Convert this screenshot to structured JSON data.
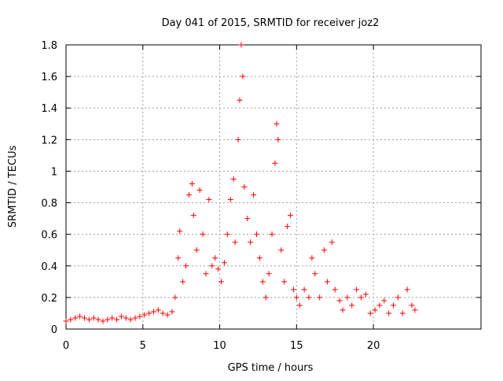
{
  "chart_data": {
    "type": "scatter",
    "title": "Day 041 of 2015, SRMTID for receiver joz2",
    "xlabel": "GPS time / hours",
    "ylabel": "SRMTID / TECUs",
    "xlim": [
      0,
      27
    ],
    "ylim": [
      0,
      1.8
    ],
    "xticks": [
      0,
      5,
      10,
      15,
      20
    ],
    "xtick_labels": [
      "0",
      "5",
      "10",
      "15",
      "20"
    ],
    "yticks": [
      0,
      0.2,
      0.4,
      0.6,
      0.8,
      1,
      1.2,
      1.4,
      1.6,
      1.8
    ],
    "ytick_labels": [
      "0",
      "0.2",
      "0.4",
      "0.6",
      "0.8",
      "1",
      "1.2",
      "1.4",
      "1.6",
      "1.8"
    ],
    "grid": true,
    "marker": "+",
    "color": "#ff0000",
    "series": [
      {
        "name": "SRMTID",
        "points": [
          [
            0.0,
            0.05
          ],
          [
            0.3,
            0.06
          ],
          [
            0.6,
            0.07
          ],
          [
            0.9,
            0.08
          ],
          [
            1.2,
            0.07
          ],
          [
            1.5,
            0.06
          ],
          [
            1.8,
            0.07
          ],
          [
            2.1,
            0.06
          ],
          [
            2.4,
            0.05
          ],
          [
            2.7,
            0.06
          ],
          [
            3.0,
            0.07
          ],
          [
            3.3,
            0.06
          ],
          [
            3.6,
            0.08
          ],
          [
            3.9,
            0.07
          ],
          [
            4.2,
            0.06
          ],
          [
            4.5,
            0.07
          ],
          [
            4.8,
            0.08
          ],
          [
            5.1,
            0.09
          ],
          [
            5.4,
            0.1
          ],
          [
            5.7,
            0.11
          ],
          [
            6.0,
            0.12
          ],
          [
            6.3,
            0.1
          ],
          [
            6.6,
            0.09
          ],
          [
            6.9,
            0.11
          ],
          [
            7.1,
            0.2
          ],
          [
            7.3,
            0.45
          ],
          [
            7.4,
            0.62
          ],
          [
            7.6,
            0.3
          ],
          [
            7.8,
            0.4
          ],
          [
            8.0,
            0.85
          ],
          [
            8.2,
            0.92
          ],
          [
            8.3,
            0.72
          ],
          [
            8.5,
            0.5
          ],
          [
            8.7,
            0.88
          ],
          [
            8.9,
            0.6
          ],
          [
            9.1,
            0.35
          ],
          [
            9.3,
            0.82
          ],
          [
            9.5,
            0.4
          ],
          [
            9.7,
            0.45
          ],
          [
            9.9,
            0.38
          ],
          [
            10.1,
            0.3
          ],
          [
            10.3,
            0.42
          ],
          [
            10.5,
            0.6
          ],
          [
            10.7,
            0.82
          ],
          [
            10.9,
            0.95
          ],
          [
            11.0,
            0.55
          ],
          [
            11.2,
            1.2
          ],
          [
            11.3,
            1.45
          ],
          [
            11.4,
            1.8
          ],
          [
            11.5,
            1.6
          ],
          [
            11.6,
            0.9
          ],
          [
            11.8,
            0.7
          ],
          [
            12.0,
            0.55
          ],
          [
            12.2,
            0.85
          ],
          [
            12.4,
            0.6
          ],
          [
            12.6,
            0.45
          ],
          [
            12.8,
            0.3
          ],
          [
            13.0,
            0.2
          ],
          [
            13.2,
            0.35
          ],
          [
            13.4,
            0.6
          ],
          [
            13.6,
            1.05
          ],
          [
            13.7,
            1.3
          ],
          [
            13.8,
            1.2
          ],
          [
            14.0,
            0.5
          ],
          [
            14.2,
            0.3
          ],
          [
            14.4,
            0.65
          ],
          [
            14.6,
            0.72
          ],
          [
            14.8,
            0.25
          ],
          [
            15.0,
            0.2
          ],
          [
            15.2,
            0.15
          ],
          [
            15.5,
            0.25
          ],
          [
            15.8,
            0.2
          ],
          [
            16.0,
            0.45
          ],
          [
            16.2,
            0.35
          ],
          [
            16.5,
            0.2
          ],
          [
            16.8,
            0.5
          ],
          [
            17.0,
            0.3
          ],
          [
            17.3,
            0.55
          ],
          [
            17.5,
            0.25
          ],
          [
            17.8,
            0.18
          ],
          [
            18.0,
            0.12
          ],
          [
            18.3,
            0.2
          ],
          [
            18.6,
            0.15
          ],
          [
            18.9,
            0.25
          ],
          [
            19.2,
            0.2
          ],
          [
            19.5,
            0.22
          ],
          [
            19.8,
            0.1
          ],
          [
            20.1,
            0.12
          ],
          [
            20.4,
            0.15
          ],
          [
            20.7,
            0.18
          ],
          [
            21.0,
            0.1
          ],
          [
            21.3,
            0.15
          ],
          [
            21.6,
            0.2
          ],
          [
            21.9,
            0.1
          ],
          [
            22.2,
            0.25
          ],
          [
            22.5,
            0.15
          ],
          [
            22.7,
            0.12
          ]
        ]
      }
    ]
  }
}
